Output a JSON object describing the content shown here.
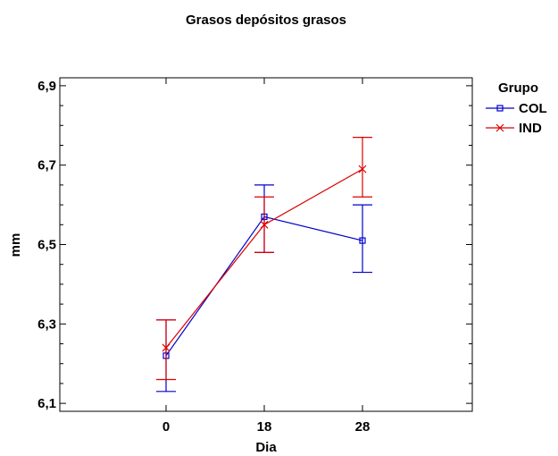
{
  "chart_data": {
    "type": "line",
    "title": "Grasos depósitos grasos",
    "xlabel": "Dia",
    "ylabel": "mm",
    "categories": [
      "0",
      "18",
      "28"
    ],
    "ylim": [
      6.08,
      6.92
    ],
    "yticks": [
      "6,1",
      "6,3",
      "6,5",
      "6,7",
      "6,9"
    ],
    "ytick_values": [
      6.1,
      6.3,
      6.5,
      6.7,
      6.9
    ],
    "grid": false,
    "legend": {
      "title": "Grupo",
      "placement": "right"
    },
    "error_bars": true,
    "series": [
      {
        "name": "COL",
        "color": "#0000cc",
        "marker": "square",
        "values": [
          6.22,
          6.57,
          6.51
        ],
        "lower": [
          6.13,
          6.48,
          6.43
        ],
        "upper": [
          6.31,
          6.65,
          6.6
        ]
      },
      {
        "name": "IND",
        "color": "#dd0000",
        "marker": "x",
        "values": [
          6.24,
          6.55,
          6.69
        ],
        "lower": [
          6.16,
          6.48,
          6.62
        ],
        "upper": [
          6.31,
          6.62,
          6.77
        ]
      }
    ]
  }
}
